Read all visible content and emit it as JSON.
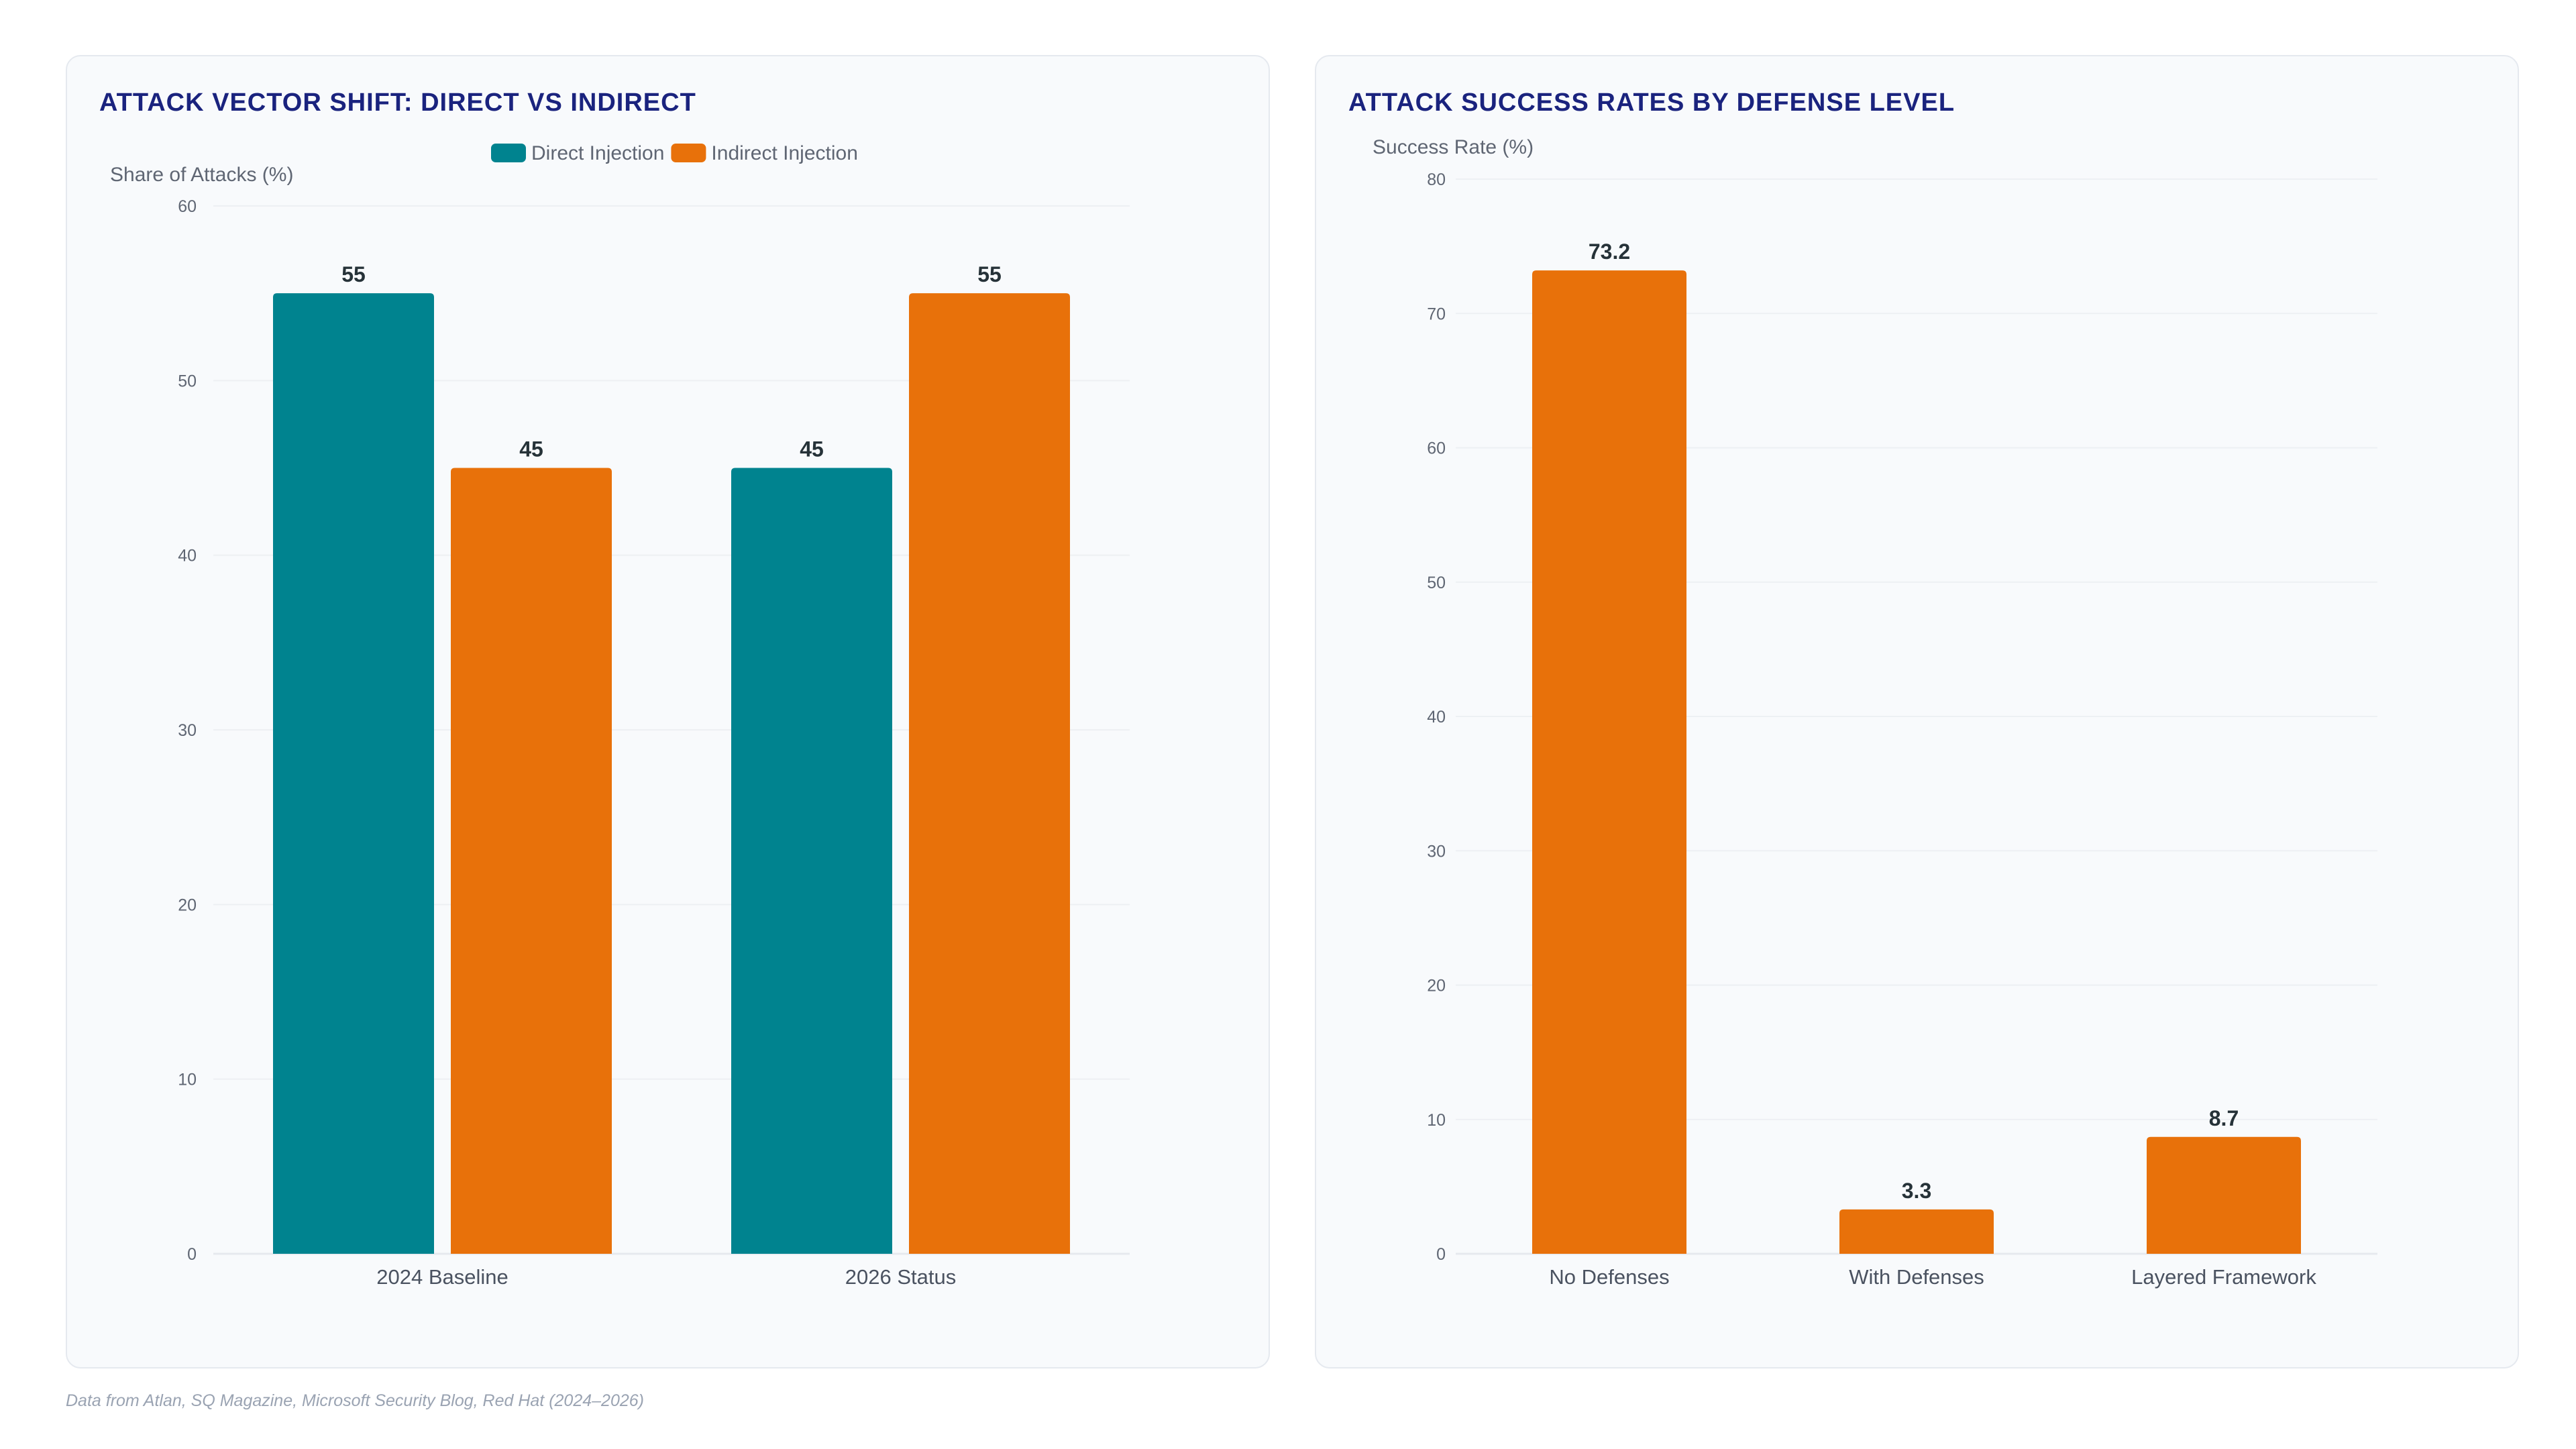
{
  "footer": {
    "source_note": "Data from Atlan, SQ Magazine, Microsoft Security Blog, Red Hat (2024–2026)"
  },
  "chart_data": [
    {
      "type": "bar",
      "title": "ATTACK VECTOR SHIFT: DIRECT VS INDIRECT",
      "ylabel": "Share of Attacks (%)",
      "xlabel": "",
      "ylim": [
        0,
        60
      ],
      "yticks": [
        0,
        10,
        20,
        30,
        40,
        50,
        60
      ],
      "grid": true,
      "legend": "top-center",
      "categories": [
        "2024 Baseline",
        "2026 Status"
      ],
      "series": [
        {
          "name": "Direct Injection",
          "color": "#00838f",
          "values": [
            55,
            45
          ]
        },
        {
          "name": "Indirect Injection",
          "color": "#e8710a",
          "values": [
            45,
            55
          ]
        }
      ]
    },
    {
      "type": "bar",
      "title": "ATTACK SUCCESS RATES BY DEFENSE LEVEL",
      "ylabel": "Success Rate (%)",
      "xlabel": "",
      "ylim": [
        0,
        80
      ],
      "yticks": [
        0,
        10,
        20,
        30,
        40,
        50,
        60,
        70,
        80
      ],
      "grid": true,
      "categories": [
        "No Defenses",
        "With Defenses",
        "Layered Framework"
      ],
      "series": [
        {
          "color": "#e8710a",
          "values": [
            73.2,
            3.3,
            8.7
          ]
        }
      ]
    }
  ]
}
